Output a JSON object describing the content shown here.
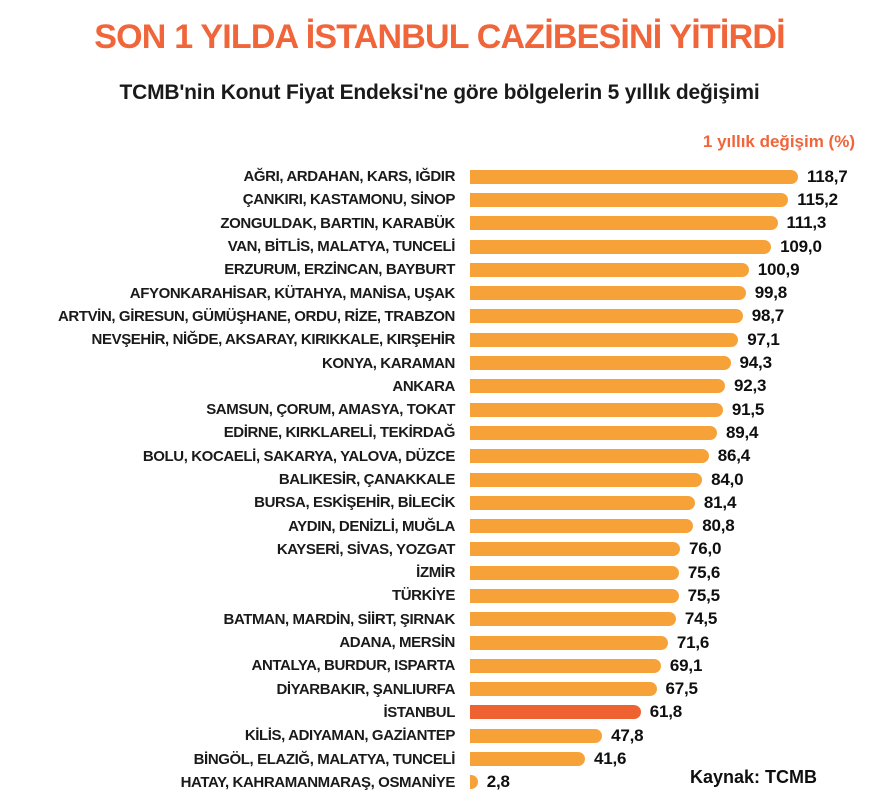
{
  "chart_data": {
    "type": "bar",
    "orientation": "horizontal",
    "title": "SON 1 YILDA İSTANBUL CAZİBESİNİ YİTİRDİ",
    "subtitle": "TCMB'nin Konut Fiyat Endeksi'ne göre bölgelerin 5 yıllık değişimi",
    "series_label": "1 yıllık değişim (%)",
    "source": "Kaynak: TCMB",
    "xlim": [
      0,
      125
    ],
    "grid": false,
    "legend_position": "top-right",
    "categories": [
      "AĞRI, ARDAHAN, KARS, IĞDIR",
      "ÇANKIRI, KASTAMONU, SİNOP",
      "ZONGULDAK, BARTIN, KARABÜK",
      "VAN, BİTLİS, MALATYA, TUNCELİ",
      "ERZURUM, ERZİNCAN, BAYBURT",
      "AFYONKARAHİSAR, KÜTAHYA, MANİSA, UŞAK",
      "ARTVİN, GİRESUN, GÜMÜŞHANE, ORDU, RİZE, TRABZON",
      "NEVŞEHİR, NİĞDE, AKSARAY, KIRIKKALE, KIRŞEHİR",
      "KONYA, KARAMAN",
      "ANKARA",
      "SAMSUN, ÇORUM, AMASYA, TOKAT",
      "EDİRNE, KIRKLARELİ, TEKİRDAĞ",
      "BOLU, KOCAELİ, SAKARYA, YALOVA, DÜZCE",
      "BALIKESİR, ÇANAKKALE",
      "BURSA, ESKİŞEHİR, BİLECİK",
      "AYDIN, DENİZLİ, MUĞLA",
      "KAYSERİ, SİVAS, YOZGAT",
      "İZMİR",
      "TÜRKİYE",
      "BATMAN, MARDİN, SİİRT, ŞIRNAK",
      "ADANA, MERSİN",
      "ANTALYA, BURDUR, ISPARTA",
      "DİYARBAKIR, ŞANLIURFA",
      "İSTANBUL",
      "KİLİS, ADIYAMAN, GAZİANTEP",
      "BİNGÖL, ELAZIĞ, MALATYA, TUNCELİ",
      "HATAY, KAHRAMANMARAŞ, OSMANİYE"
    ],
    "values": [
      118.7,
      115.2,
      111.3,
      109.0,
      100.9,
      99.8,
      98.7,
      97.1,
      94.3,
      92.3,
      91.5,
      89.4,
      86.4,
      84.0,
      81.4,
      80.8,
      76.0,
      75.6,
      75.5,
      74.5,
      71.6,
      69.1,
      67.5,
      61.8,
      47.8,
      41.6,
      2.8
    ],
    "value_labels": [
      "118,7",
      "115,2",
      "111,3",
      "109,0",
      "100,9",
      "99,8",
      "98,7",
      "97,1",
      "94,3",
      "92,3",
      "91,5",
      "89,4",
      "86,4",
      "84,0",
      "81,4",
      "80,8",
      "76,0",
      "75,6",
      "75,5",
      "74,5",
      "71,6",
      "69,1",
      "67,5",
      "61,8",
      "47,8",
      "41,6",
      "2,8"
    ],
    "highlight_index": 23,
    "highlight_category": "İSTANBUL",
    "colors": {
      "bar": "#F7A239",
      "highlight_bar": "#EE6130",
      "title": "#F0653A",
      "legend": "#F0653A",
      "text": "#1A1A1A",
      "background": "#FFFFFF"
    }
  }
}
